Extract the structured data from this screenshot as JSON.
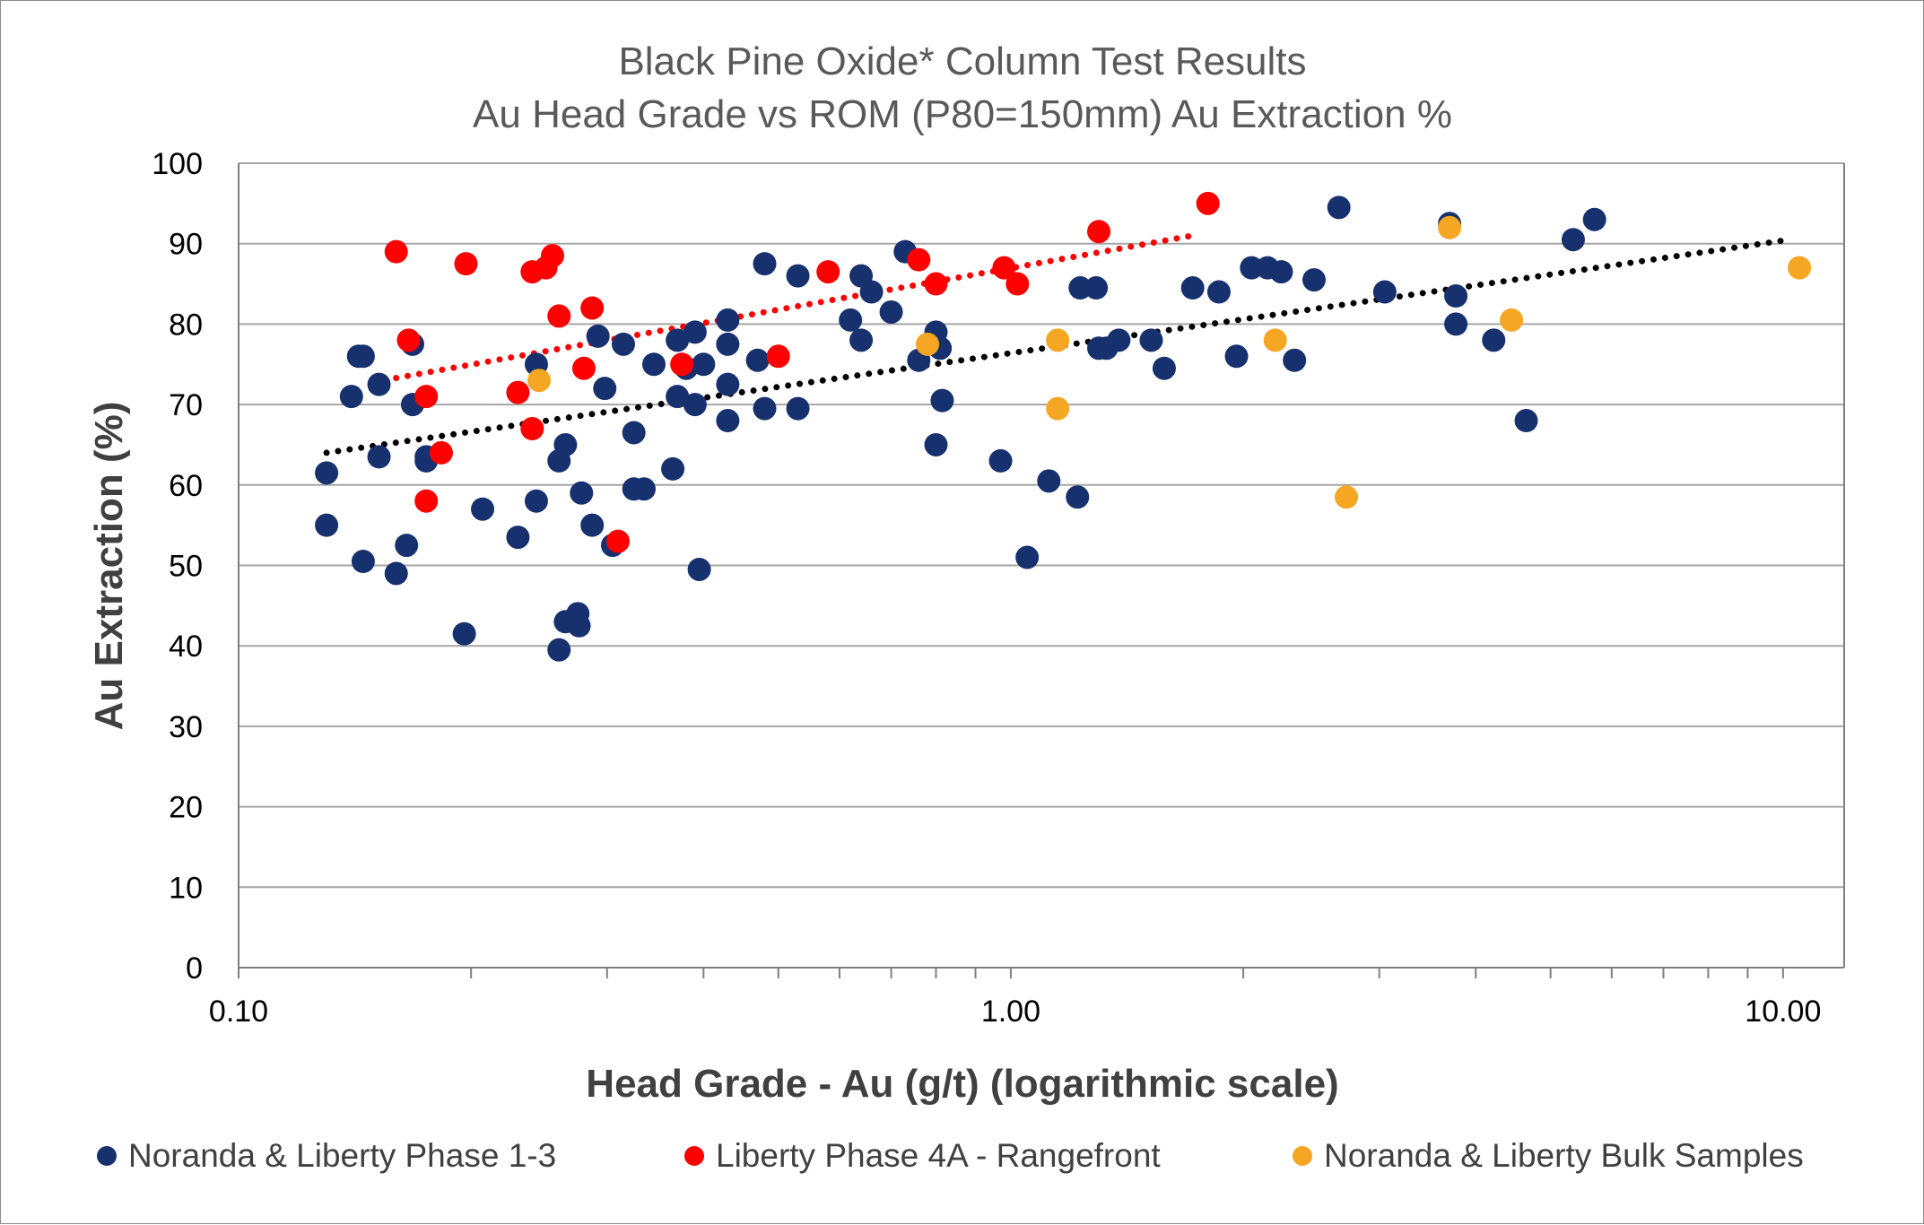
{
  "chart_data": {
    "type": "scatter",
    "title": "Black Pine Oxide* Column Test Results",
    "subtitle": "Au Head Grade vs ROM (P80=150mm) Au Extraction %",
    "xlabel": "Head Grade - Au (g/t) (logarithmic scale)",
    "ylabel": "Au Extraction (%)",
    "x_scale": "log",
    "xlim": [
      0.1,
      12
    ],
    "ylim": [
      0,
      100
    ],
    "x_ticks": [
      0.1,
      1,
      10
    ],
    "x_tick_labels": [
      "0.10",
      "1.00",
      "10.00"
    ],
    "y_ticks": [
      0,
      10,
      20,
      30,
      40,
      50,
      60,
      70,
      80,
      90,
      100
    ],
    "y_tick_labels": [
      "0",
      "10",
      "20",
      "30",
      "40",
      "50",
      "60",
      "70",
      "80",
      "90",
      "100"
    ],
    "grid": "horizontal",
    "legend_position": "bottom",
    "series": [
      {
        "name": "Noranda & Liberty Phase 1-3",
        "color": "#17306e",
        "points": [
          [
            0.13,
            61.5
          ],
          [
            0.13,
            55
          ],
          [
            0.14,
            71
          ],
          [
            0.143,
            76
          ],
          [
            0.145,
            76
          ],
          [
            0.145,
            50.5
          ],
          [
            0.152,
            72.5
          ],
          [
            0.152,
            63.5
          ],
          [
            0.16,
            49
          ],
          [
            0.165,
            52.5
          ],
          [
            0.168,
            77.5
          ],
          [
            0.168,
            70
          ],
          [
            0.175,
            63.5
          ],
          [
            0.175,
            63
          ],
          [
            0.196,
            41.5
          ],
          [
            0.207,
            57
          ],
          [
            0.23,
            53.5
          ],
          [
            0.243,
            75
          ],
          [
            0.243,
            58
          ],
          [
            0.26,
            63
          ],
          [
            0.26,
            39.5
          ],
          [
            0.265,
            65
          ],
          [
            0.265,
            43
          ],
          [
            0.275,
            44
          ],
          [
            0.276,
            42.5
          ],
          [
            0.278,
            59
          ],
          [
            0.287,
            55
          ],
          [
            0.292,
            78.5
          ],
          [
            0.298,
            72
          ],
          [
            0.305,
            52.5
          ],
          [
            0.315,
            77.5
          ],
          [
            0.325,
            66.5
          ],
          [
            0.325,
            59.5
          ],
          [
            0.335,
            59.5
          ],
          [
            0.345,
            75
          ],
          [
            0.365,
            62
          ],
          [
            0.37,
            78
          ],
          [
            0.37,
            71
          ],
          [
            0.38,
            74.5
          ],
          [
            0.39,
            79
          ],
          [
            0.39,
            70
          ],
          [
            0.4,
            75
          ],
          [
            0.395,
            49.5
          ],
          [
            0.43,
            80.5
          ],
          [
            0.43,
            77.5
          ],
          [
            0.43,
            72.5
          ],
          [
            0.43,
            68
          ],
          [
            0.47,
            75.5
          ],
          [
            0.48,
            87.5
          ],
          [
            0.48,
            69.5
          ],
          [
            0.53,
            86
          ],
          [
            0.53,
            69.5
          ],
          [
            0.62,
            80.5
          ],
          [
            0.64,
            86
          ],
          [
            0.64,
            78
          ],
          [
            0.66,
            84
          ],
          [
            0.7,
            81.5
          ],
          [
            0.73,
            89
          ],
          [
            0.76,
            75.5
          ],
          [
            0.8,
            79
          ],
          [
            0.81,
            77
          ],
          [
            0.815,
            70.5
          ],
          [
            0.8,
            65
          ],
          [
            0.97,
            63
          ],
          [
            1.05,
            51
          ],
          [
            1.12,
            60.5
          ],
          [
            1.22,
            58.5
          ],
          [
            1.23,
            84.5
          ],
          [
            1.29,
            84.5
          ],
          [
            1.3,
            77
          ],
          [
            1.33,
            77
          ],
          [
            1.38,
            78
          ],
          [
            1.52,
            78
          ],
          [
            1.58,
            74.5
          ],
          [
            1.72,
            84.5
          ],
          [
            1.86,
            84
          ],
          [
            1.96,
            76
          ],
          [
            2.05,
            87
          ],
          [
            2.15,
            87
          ],
          [
            2.24,
            86.5
          ],
          [
            2.33,
            75.5
          ],
          [
            2.47,
            85.5
          ],
          [
            2.66,
            94.5
          ],
          [
            3.05,
            84
          ],
          [
            3.7,
            92.5
          ],
          [
            3.77,
            83.5
          ],
          [
            3.77,
            80
          ],
          [
            4.22,
            78
          ],
          [
            4.65,
            68
          ],
          [
            5.35,
            90.5
          ],
          [
            5.7,
            93
          ]
        ]
      },
      {
        "name": "Liberty Phase 4A - Rangefront",
        "color": "#ff0000",
        "points": [
          [
            0.16,
            89
          ],
          [
            0.166,
            78
          ],
          [
            0.175,
            71
          ],
          [
            0.175,
            58
          ],
          [
            0.183,
            64
          ],
          [
            0.197,
            87.5
          ],
          [
            0.23,
            71.5
          ],
          [
            0.24,
            67
          ],
          [
            0.24,
            86.5
          ],
          [
            0.25,
            87
          ],
          [
            0.255,
            88.5
          ],
          [
            0.26,
            81
          ],
          [
            0.28,
            74.5
          ],
          [
            0.287,
            82
          ],
          [
            0.31,
            53
          ],
          [
            0.375,
            75
          ],
          [
            0.5,
            76
          ],
          [
            0.58,
            86.5
          ],
          [
            0.76,
            88
          ],
          [
            0.8,
            85
          ],
          [
            0.98,
            87
          ],
          [
            1.02,
            85
          ],
          [
            1.3,
            91.5
          ],
          [
            1.8,
            95
          ]
        ]
      },
      {
        "name": "Noranda & Liberty Bulk Samples",
        "color": "#f5a623",
        "points": [
          [
            0.245,
            73
          ],
          [
            0.78,
            77.5
          ],
          [
            1.15,
            78
          ],
          [
            1.15,
            69.5
          ],
          [
            2.2,
            78
          ],
          [
            2.72,
            58.5
          ],
          [
            3.7,
            92
          ],
          [
            4.45,
            80.5
          ],
          [
            10.5,
            87
          ]
        ]
      }
    ],
    "trendlines": [
      {
        "series": "Noranda & Liberty Phase 1-3",
        "color": "#000000",
        "x": [
          0.13,
          10.2
        ],
        "y": [
          64,
          90.5
        ]
      },
      {
        "series": "Liberty Phase 4A - Rangefront",
        "color": "#ff0000",
        "x": [
          0.16,
          1.72
        ],
        "y": [
          73.3,
          91
        ]
      }
    ]
  }
}
